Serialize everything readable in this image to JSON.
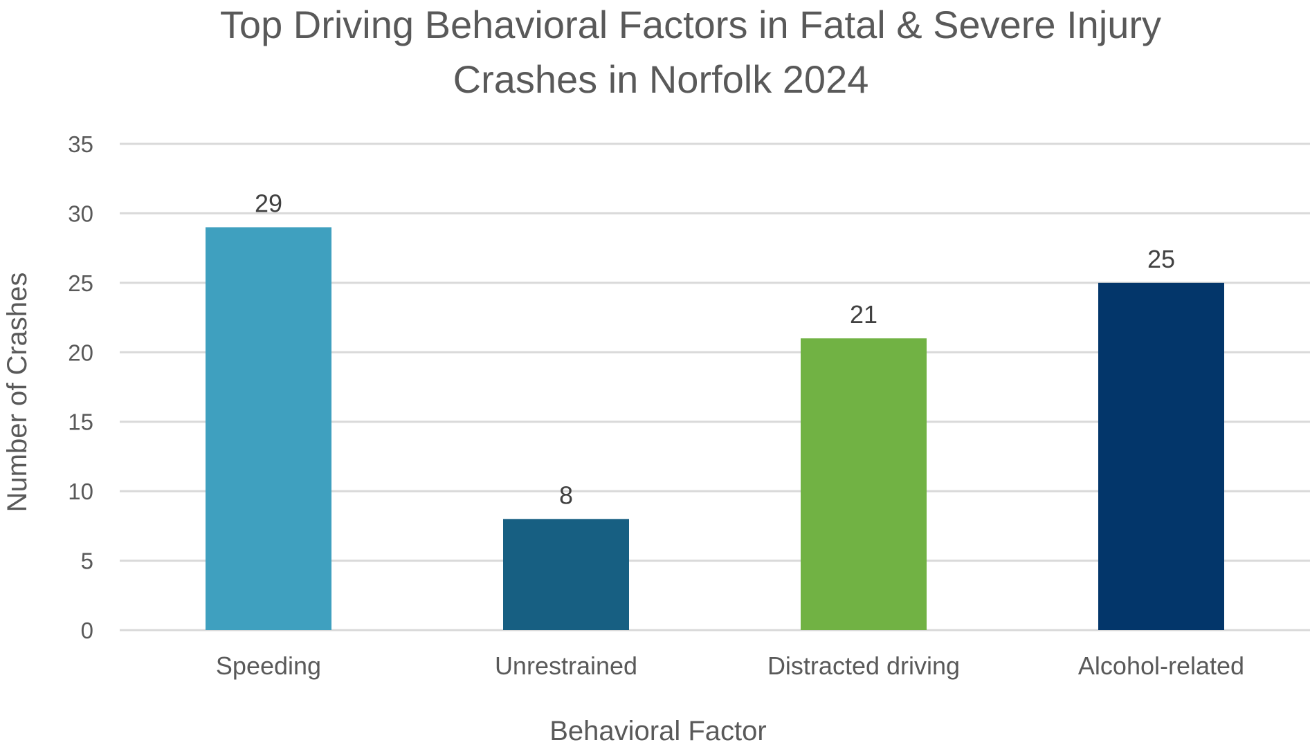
{
  "chart_data": {
    "type": "bar",
    "title": [
      "Top Driving Behavioral Factors in Fatal & Severe Injury",
      "Crashes in Norfolk  2024"
    ],
    "xlabel": "Behavioral Factor",
    "ylabel": "Number of Crashes",
    "categories": [
      "Speeding",
      "Unrestrained",
      "Distracted driving",
      "Alcohol-related"
    ],
    "values": [
      29,
      8,
      21,
      25
    ],
    "colors": [
      "#3FA0BF",
      "#175F82",
      "#71B244",
      "#03366A"
    ],
    "ylim": [
      0,
      35
    ],
    "yticks": [
      0,
      5,
      10,
      15,
      20,
      25,
      30,
      35
    ],
    "grid": true,
    "data_labels": true
  }
}
